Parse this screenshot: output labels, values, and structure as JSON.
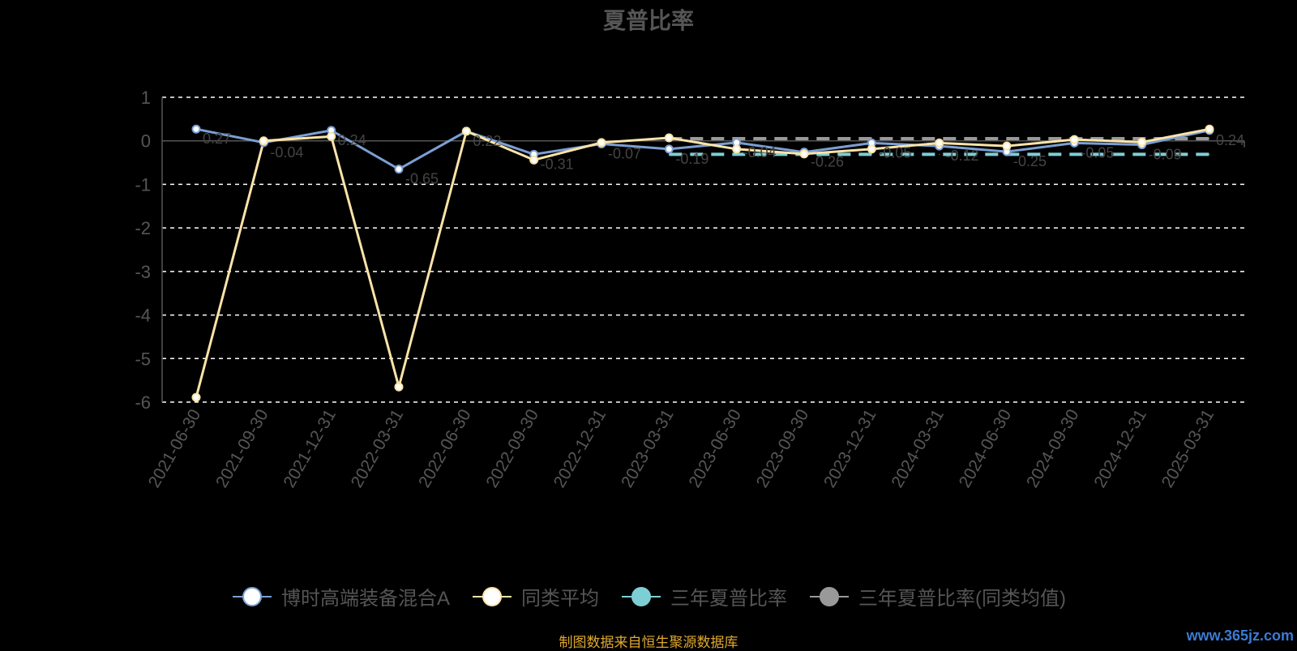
{
  "chart_data": {
    "type": "line",
    "title": "夏普比率",
    "categories": [
      "2021-06-30",
      "2021-09-30",
      "2021-12-31",
      "2022-03-31",
      "2022-06-30",
      "2022-09-30",
      "2022-12-31",
      "2023-03-31",
      "2023-06-30",
      "2023-09-30",
      "2023-12-31",
      "2024-03-31",
      "2024-06-30",
      "2024-09-30",
      "2024-12-31",
      "2025-03-31"
    ],
    "ylim": [
      -6,
      1
    ],
    "yticks": [
      1,
      0,
      -1,
      -2,
      -3,
      -4,
      -5,
      -6
    ],
    "grid": true,
    "legend_position": "bottom",
    "series": [
      {
        "name": "博时高端装备混合A",
        "type": "line",
        "color": "#7b9fd4",
        "values": [
          0.27,
          -0.04,
          0.24,
          -0.65,
          0.22,
          -0.31,
          -0.07,
          -0.19,
          -0.04,
          -0.26,
          -0.05,
          -0.12,
          -0.25,
          -0.05,
          -0.09,
          0.24
        ]
      },
      {
        "name": "同类平均",
        "type": "line",
        "color": "#fce4a8",
        "values": [
          -5.89,
          0.0,
          0.1,
          -5.65,
          0.22,
          -0.44,
          -0.04,
          0.07,
          -0.19,
          -0.3,
          -0.19,
          -0.05,
          -0.12,
          0.03,
          -0.03,
          0.27
        ]
      },
      {
        "name": "三年夏普比率",
        "type": "line-dashed",
        "color": "#7ecfd4",
        "values": [
          null,
          null,
          null,
          null,
          null,
          null,
          null,
          -0.31,
          -0.31,
          -0.31,
          -0.31,
          -0.31,
          -0.31,
          -0.31,
          -0.31,
          -0.31
        ]
      },
      {
        "name": "三年夏普比率(同类均值)",
        "type": "line-dashed",
        "color": "#999999",
        "values": [
          null,
          null,
          null,
          null,
          null,
          null,
          null,
          0.05,
          0.05,
          0.05,
          0.05,
          0.05,
          0.05,
          0.05,
          0.05,
          0.05
        ]
      }
    ]
  },
  "legend": {
    "items": [
      {
        "label": "博时高端装备混合A",
        "color": "#7b9fd4",
        "fill": "#ffffff"
      },
      {
        "label": "同类平均",
        "color": "#fce4a8",
        "fill": "#ffffff"
      },
      {
        "label": "三年夏普比率",
        "color": "#7ecfd4",
        "fill": "#7ecfd4"
      },
      {
        "label": "三年夏普比率(同类均值)",
        "color": "#999999",
        "fill": "#999999"
      }
    ]
  },
  "source_text": "制图数据来自恒生聚源数据库",
  "watermark": "www.365jz.com",
  "colors": {
    "background": "#000000",
    "axis_text": "#555555",
    "grid": "#ffffff",
    "source": "#e0a830"
  }
}
